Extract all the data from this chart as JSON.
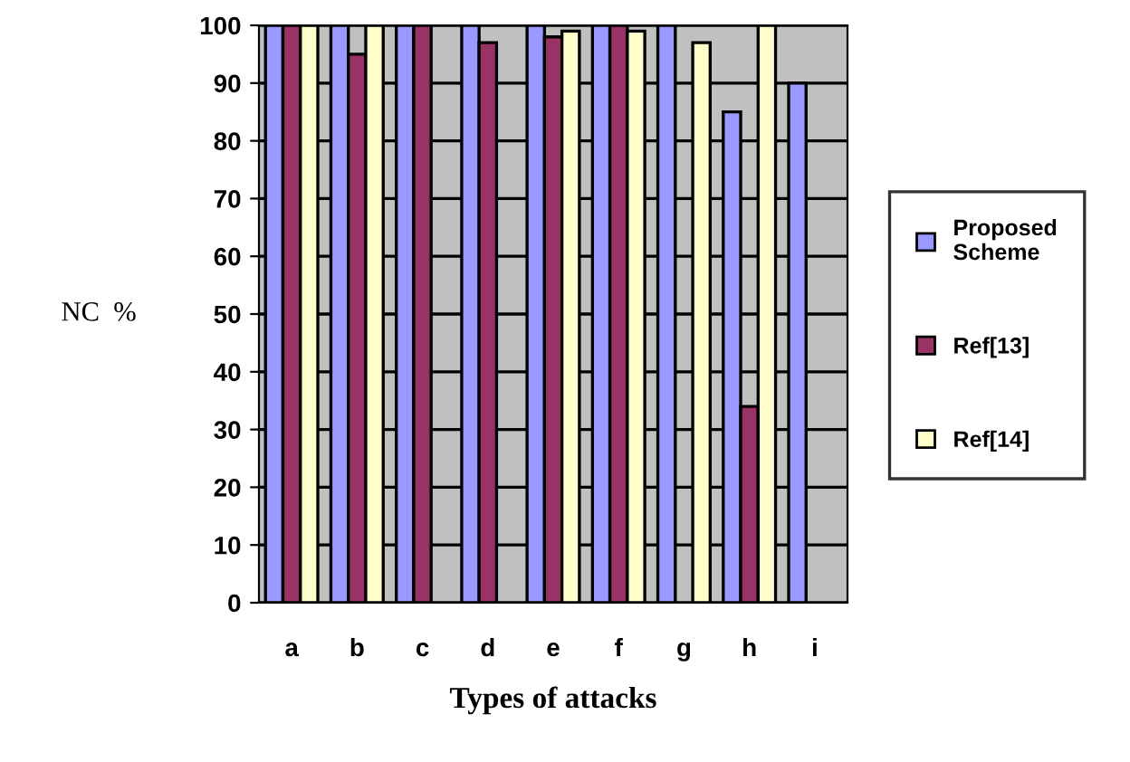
{
  "chart_data": {
    "type": "bar",
    "xlabel": "Types of attacks",
    "ylabel": "NC  %",
    "categories": [
      "a",
      "b",
      "c",
      "d",
      "e",
      "f",
      "g",
      "h",
      "i"
    ],
    "series": [
      {
        "name": "Proposed Scheme",
        "color": "#9999ff",
        "values": [
          100,
          100,
          100,
          100,
          100,
          100,
          100,
          85,
          90
        ]
      },
      {
        "name": "Ref[13]",
        "color": "#993366",
        "values": [
          100,
          95,
          100,
          97,
          98,
          100,
          null,
          34,
          null
        ]
      },
      {
        "name": "Ref[14]",
        "color": "#ffffcc",
        "values": [
          100,
          100,
          null,
          null,
          99,
          99,
          97,
          100,
          null
        ]
      }
    ],
    "ylim": [
      0,
      100
    ],
    "yticks": [
      0,
      10,
      20,
      30,
      40,
      50,
      60,
      70,
      80,
      90,
      100
    ],
    "grid": "y",
    "legend": "right"
  }
}
